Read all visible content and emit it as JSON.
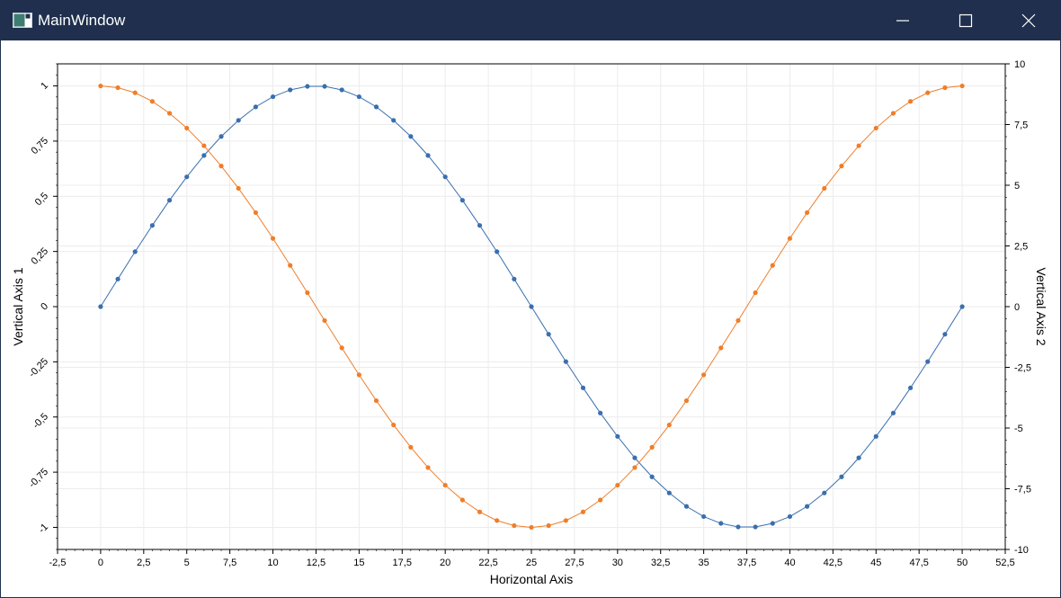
{
  "window": {
    "title": "MainWindow",
    "icons": {
      "app": "app-window-icon",
      "minimize": "minimize-icon",
      "maximize": "maximize-icon",
      "close": "close-icon"
    }
  },
  "colors": {
    "titlebar": "#1f2f4d",
    "series1": "#3a6faf",
    "series2": "#ef7e2a",
    "grid": "#ececec"
  },
  "chart_data": {
    "type": "line",
    "title": "",
    "xlabel": "Horizontal Axis",
    "ylabel": "Vertical Axis 1",
    "y2label": "Vertical Axis 2",
    "xlim": [
      -2.5,
      52.5
    ],
    "ylim": [
      -1.1,
      1.1
    ],
    "y2lim": [
      -10,
      10
    ],
    "grid": true,
    "x_ticks": [
      "-2,5",
      "0",
      "2,5",
      "5",
      "7,5",
      "10",
      "12,5",
      "15",
      "17,5",
      "20",
      "22,5",
      "25",
      "27,5",
      "30",
      "32,5",
      "35",
      "37,5",
      "40",
      "42,5",
      "45",
      "47,5",
      "50",
      "52,5"
    ],
    "y_ticks": [
      "-1",
      "-0,75",
      "-0,5",
      "-0,25",
      "0",
      "0,25",
      "0,5",
      "0,75",
      "1"
    ],
    "y2_ticks": [
      "-10",
      "-7,5",
      "-5",
      "-2,5",
      "0",
      "2,5",
      "5",
      "7,5",
      "10"
    ],
    "x": [
      0,
      1,
      2,
      3,
      4,
      5,
      6,
      7,
      8,
      9,
      10,
      11,
      12,
      13,
      14,
      15,
      16,
      17,
      18,
      19,
      20,
      21,
      22,
      23,
      24,
      25,
      26,
      27,
      28,
      29,
      30,
      31,
      32,
      33,
      34,
      35,
      36,
      37,
      38,
      39,
      40,
      41,
      42,
      43,
      44,
      45,
      46,
      47,
      48,
      49,
      50
    ],
    "series": [
      {
        "name": "",
        "axis": "y",
        "values": [
          0,
          0.125,
          0.249,
          0.368,
          0.482,
          0.588,
          0.685,
          0.771,
          0.844,
          0.905,
          0.951,
          0.982,
          0.998,
          0.998,
          0.982,
          0.951,
          0.905,
          0.844,
          0.771,
          0.685,
          0.588,
          0.482,
          0.368,
          0.249,
          0.125,
          0,
          -0.125,
          -0.249,
          -0.368,
          -0.482,
          -0.588,
          -0.685,
          -0.771,
          -0.844,
          -0.905,
          -0.951,
          -0.982,
          -0.998,
          -0.998,
          -0.982,
          -0.951,
          -0.905,
          -0.844,
          -0.771,
          -0.685,
          -0.588,
          -0.482,
          -0.368,
          -0.249,
          -0.125,
          0
        ]
      },
      {
        "name": "",
        "axis": "y",
        "values": [
          1,
          0.992,
          0.969,
          0.93,
          0.876,
          0.809,
          0.729,
          0.637,
          0.536,
          0.426,
          0.309,
          0.187,
          0.063,
          -0.063,
          -0.187,
          -0.309,
          -0.426,
          -0.536,
          -0.637,
          -0.729,
          -0.809,
          -0.876,
          -0.93,
          -0.969,
          -0.992,
          -1,
          -0.992,
          -0.969,
          -0.93,
          -0.876,
          -0.809,
          -0.729,
          -0.637,
          -0.536,
          -0.426,
          -0.309,
          -0.187,
          -0.063,
          0.063,
          0.187,
          0.309,
          0.426,
          0.536,
          0.637,
          0.729,
          0.809,
          0.876,
          0.93,
          0.969,
          0.992,
          1
        ]
      }
    ]
  }
}
